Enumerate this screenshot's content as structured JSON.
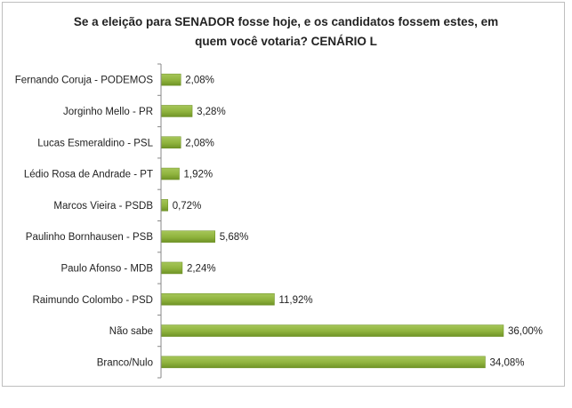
{
  "chart_data": {
    "type": "bar",
    "orientation": "horizontal",
    "title": "Se a eleição para SENADOR fosse hoje, e os candidatos fossem estes, em quem você votaria? CENÁRIO L",
    "title_lines": [
      "Se a eleição para SENADOR fosse hoje, e os candidatos fossem estes, em",
      "quem você votaria? CENÁRIO L"
    ],
    "categories": [
      "Fernando Coruja - PODEMOS",
      "Jorginho Mello - PR",
      "Lucas Esmeraldino - PSL",
      "Lédio Rosa de Andrade - PT",
      "Marcos Vieira - PSDB",
      "Paulinho Bornhausen - PSB",
      "Paulo Afonso - MDB",
      "Raimundo Colombo - PSD",
      "Não sabe",
      "Branco/Nulo"
    ],
    "values": [
      2.08,
      3.28,
      2.08,
      1.92,
      0.72,
      5.68,
      2.24,
      11.92,
      36.0,
      34.08
    ],
    "data_labels": [
      "2,08%",
      "3,28%",
      "2,08%",
      "1,92%",
      "0,72%",
      "5,68%",
      "2,24%",
      "11,92%",
      "36,00%",
      "34,08%"
    ],
    "xlim": [
      0,
      38
    ],
    "grid": false,
    "legend": "none",
    "bar_color": "#8fb33d",
    "bar_color_dark": "#6b8f22"
  }
}
